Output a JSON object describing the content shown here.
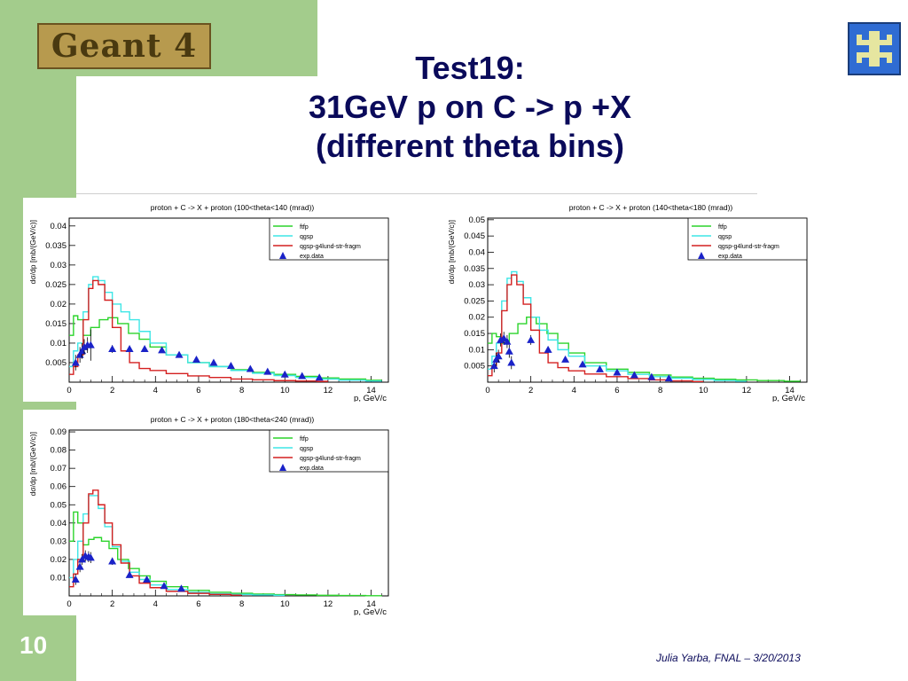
{
  "header": {
    "logo_text": "Geant 4",
    "title_lines": [
      "Test19:",
      "31GeV p on C -> p +X",
      "(different theta bins)"
    ],
    "fermilab_logo": "fermilab-logo-icon"
  },
  "footer": {
    "page_number": "10",
    "credit": "Julia Yarba, FNAL – 3/20/2013"
  },
  "colors": {
    "sidebar": "#a3cc8c",
    "title": "#0a0a5a",
    "ftfp": "#2bd42b",
    "qgsp": "#3ee6e6",
    "qgsp_lund": "#d42020",
    "exp": "#1a22c8"
  },
  "chart_data": [
    {
      "type": "line",
      "title": "proton + C -> X + proton  (100<theta<140 (mrad))",
      "xlabel": "p, GeV/c",
      "ylabel": "dσ/dp  [mb/(GeV/c)]",
      "xlim": [
        0,
        14.8
      ],
      "ylim": [
        0,
        0.042
      ],
      "xticks": [
        0,
        2,
        4,
        6,
        8,
        10,
        12,
        14
      ],
      "yticks": [
        0.005,
        0.01,
        0.015,
        0.02,
        0.025,
        0.03,
        0.035,
        0.04
      ],
      "ytick_labels": [
        "0.005",
        "0.01",
        "0.015",
        "0.02",
        "0.025",
        "0.03",
        "0.035",
        "0.04"
      ],
      "legend": [
        "ftfp",
        "qgsp",
        "qgsp-g4lund-str-fragm",
        "exp.data"
      ],
      "legend_position": "top-right",
      "series": [
        {
          "name": "ftfp",
          "x": [
            0.1,
            0.3,
            0.5,
            0.8,
            1.2,
            1.6,
            2.0,
            2.5,
            3.0,
            3.5,
            4.0,
            5.0,
            6.0,
            7.0,
            8.0,
            9.0,
            10.0,
            11.0,
            12.0,
            13.0,
            14.5
          ],
          "y": [
            0.012,
            0.017,
            0.016,
            0.012,
            0.014,
            0.016,
            0.0165,
            0.015,
            0.0125,
            0.011,
            0.009,
            0.007,
            0.005,
            0.004,
            0.0032,
            0.0025,
            0.002,
            0.0015,
            0.0011,
            0.0008,
            0.0005
          ]
        },
        {
          "name": "qgsp",
          "x": [
            0.1,
            0.3,
            0.5,
            0.8,
            1.0,
            1.2,
            1.5,
            1.8,
            2.2,
            2.6,
            3.0,
            3.5,
            4.0,
            5.0,
            6.0,
            7.0,
            8.0,
            9.0,
            10.0,
            11.0,
            12.0,
            13.0,
            14.5
          ],
          "y": [
            0.004,
            0.008,
            0.01,
            0.018,
            0.025,
            0.027,
            0.026,
            0.023,
            0.02,
            0.018,
            0.016,
            0.013,
            0.01,
            0.007,
            0.005,
            0.004,
            0.003,
            0.0023,
            0.0017,
            0.0012,
            0.0008,
            0.0005,
            0.0003
          ]
        },
        {
          "name": "qgsp-g4lund-str-fragm",
          "x": [
            0.1,
            0.3,
            0.5,
            0.8,
            1.0,
            1.2,
            1.5,
            1.8,
            2.2,
            2.6,
            3.0,
            3.5,
            4.0,
            5.0,
            6.0,
            7.0,
            8.0,
            9.0,
            10.0,
            11.0,
            12.0
          ],
          "y": [
            0.002,
            0.004,
            0.007,
            0.016,
            0.024,
            0.026,
            0.025,
            0.021,
            0.014,
            0.008,
            0.005,
            0.0035,
            0.003,
            0.0022,
            0.0016,
            0.0012,
            0.0008,
            0.0006,
            0.0004,
            0.0003,
            0.0002
          ]
        }
      ],
      "points": [
        {
          "x": 0.3,
          "y": 0.005,
          "err": 0.002
        },
        {
          "x": 0.5,
          "y": 0.007,
          "err": 0.002
        },
        {
          "x": 0.6,
          "y": 0.008,
          "err": 0.002
        },
        {
          "x": 0.7,
          "y": 0.009,
          "err": 0.002
        },
        {
          "x": 0.85,
          "y": 0.0095,
          "err": 0.002
        },
        {
          "x": 1.0,
          "y": 0.0095,
          "err": 0.004
        },
        {
          "x": 2.0,
          "y": 0.0085,
          "err": 0.001
        },
        {
          "x": 2.8,
          "y": 0.0085,
          "err": 0.0008
        },
        {
          "x": 3.5,
          "y": 0.0085,
          "err": 0.0007
        },
        {
          "x": 4.3,
          "y": 0.0082,
          "err": 0.0006
        },
        {
          "x": 5.1,
          "y": 0.007,
          "err": 0.0005
        },
        {
          "x": 5.9,
          "y": 0.0058,
          "err": 0.0004
        },
        {
          "x": 6.7,
          "y": 0.005,
          "err": 0.0004
        },
        {
          "x": 7.5,
          "y": 0.0042,
          "err": 0.0003
        },
        {
          "x": 8.4,
          "y": 0.0034,
          "err": 0.0003
        },
        {
          "x": 9.2,
          "y": 0.0027,
          "err": 0.0003
        },
        {
          "x": 10.0,
          "y": 0.002,
          "err": 0.0002
        },
        {
          "x": 10.8,
          "y": 0.0016,
          "err": 0.0002
        },
        {
          "x": 11.6,
          "y": 0.0012,
          "err": 0.0002
        }
      ]
    },
    {
      "type": "line",
      "title": "proton + C -> X + proton  (140<theta<180 (mrad))",
      "xlabel": "p, GeV/c",
      "ylabel": "dσ/dp  [mb/(GeV/c)]",
      "xlim": [
        0,
        14.8
      ],
      "ylim": [
        0,
        0.0505
      ],
      "xticks": [
        0,
        2,
        4,
        6,
        8,
        10,
        12,
        14
      ],
      "yticks": [
        0.005,
        0.01,
        0.015,
        0.02,
        0.025,
        0.03,
        0.035,
        0.04,
        0.045,
        0.05
      ],
      "ytick_labels": [
        "0.005",
        "0.01",
        "0.015",
        "0.02",
        "0.025",
        "0.03",
        "0.035",
        "0.04",
        "0.045",
        "0.05"
      ],
      "legend": [
        "ftfp",
        "qgsp",
        "qgsp-g4lund-str-fragm",
        "exp.data"
      ],
      "legend_position": "top-right",
      "series": [
        {
          "name": "ftfp",
          "x": [
            0.1,
            0.3,
            0.5,
            0.8,
            1.2,
            1.6,
            2.0,
            2.5,
            3.0,
            3.5,
            4.0,
            5.0,
            6.0,
            7.0,
            8.0,
            9.0,
            10.0,
            11.0,
            12.0,
            13.0,
            14.5
          ],
          "y": [
            0.012,
            0.015,
            0.014,
            0.012,
            0.015,
            0.018,
            0.02,
            0.018,
            0.015,
            0.012,
            0.009,
            0.006,
            0.004,
            0.003,
            0.0022,
            0.0016,
            0.0012,
            0.0009,
            0.0007,
            0.0005,
            0.0003
          ]
        },
        {
          "name": "qgsp",
          "x": [
            0.1,
            0.3,
            0.5,
            0.8,
            1.0,
            1.2,
            1.5,
            1.8,
            2.2,
            2.6,
            3.0,
            3.5,
            4.0,
            5.0,
            6.0,
            7.0,
            8.0,
            9.0,
            10.0,
            11.0,
            12.0
          ],
          "y": [
            0.004,
            0.008,
            0.012,
            0.025,
            0.032,
            0.034,
            0.031,
            0.026,
            0.02,
            0.016,
            0.013,
            0.01,
            0.008,
            0.005,
            0.0035,
            0.0024,
            0.0017,
            0.0012,
            0.0008,
            0.0005,
            0.0003
          ]
        },
        {
          "name": "qgsp-g4lund-str-fragm",
          "x": [
            0.1,
            0.3,
            0.5,
            0.8,
            1.0,
            1.2,
            1.5,
            1.8,
            2.2,
            2.6,
            3.0,
            3.5,
            4.0,
            5.0,
            6.0,
            7.0,
            8.0,
            9.0,
            10.0
          ],
          "y": [
            0.002,
            0.005,
            0.009,
            0.022,
            0.03,
            0.033,
            0.03,
            0.024,
            0.016,
            0.009,
            0.006,
            0.0045,
            0.0035,
            0.0025,
            0.0017,
            0.0011,
            0.0007,
            0.0004,
            0.0002
          ]
        }
      ],
      "points": [
        {
          "x": 0.3,
          "y": 0.005,
          "err": 0.002
        },
        {
          "x": 0.4,
          "y": 0.007,
          "err": 0.002
        },
        {
          "x": 0.5,
          "y": 0.008,
          "err": 0.002
        },
        {
          "x": 0.6,
          "y": 0.013,
          "err": 0.002
        },
        {
          "x": 0.75,
          "y": 0.0135,
          "err": 0.002
        },
        {
          "x": 0.9,
          "y": 0.0125,
          "err": 0.002
        },
        {
          "x": 1.0,
          "y": 0.0095,
          "err": 0.002
        },
        {
          "x": 1.1,
          "y": 0.006,
          "err": 0.002
        },
        {
          "x": 2.0,
          "y": 0.013,
          "err": 0.0015
        },
        {
          "x": 2.8,
          "y": 0.01,
          "err": 0.001
        },
        {
          "x": 3.6,
          "y": 0.007,
          "err": 0.0008
        },
        {
          "x": 4.4,
          "y": 0.0055,
          "err": 0.0006
        },
        {
          "x": 5.2,
          "y": 0.004,
          "err": 0.0005
        },
        {
          "x": 6.0,
          "y": 0.003,
          "err": 0.0004
        },
        {
          "x": 6.8,
          "y": 0.0022,
          "err": 0.0003
        },
        {
          "x": 7.6,
          "y": 0.0016,
          "err": 0.0003
        },
        {
          "x": 8.4,
          "y": 0.0012,
          "err": 0.0002
        }
      ]
    },
    {
      "type": "line",
      "title": "proton + C -> X + proton  (180<theta<240 (mrad))",
      "xlabel": "p, GeV/c",
      "ylabel": "dσ/dp  [mb/(GeV/c)]",
      "xlim": [
        0,
        14.8
      ],
      "ylim": [
        0,
        0.091
      ],
      "xticks": [
        0,
        2,
        4,
        6,
        8,
        10,
        12,
        14
      ],
      "yticks": [
        0.01,
        0.02,
        0.03,
        0.04,
        0.05,
        0.06,
        0.07,
        0.08,
        0.09
      ],
      "ytick_labels": [
        "0.01",
        "0.02",
        "0.03",
        "0.04",
        "0.05",
        "0.06",
        "0.07",
        "0.08",
        "0.09"
      ],
      "legend": [
        "ftfp",
        "qgsp",
        "qgsp-g4lund-str-fragm",
        "exp.data"
      ],
      "legend_position": "top-right",
      "series": [
        {
          "name": "ftfp",
          "x": [
            0.1,
            0.3,
            0.5,
            0.8,
            1.0,
            1.3,
            1.7,
            2.0,
            2.5,
            3.0,
            3.5,
            4.0,
            5.0,
            6.0,
            7.0,
            8.0,
            9.0,
            10.0,
            11.0,
            12.0,
            13.0,
            14.5
          ],
          "y": [
            0.03,
            0.046,
            0.04,
            0.028,
            0.031,
            0.032,
            0.03,
            0.026,
            0.02,
            0.015,
            0.011,
            0.008,
            0.005,
            0.003,
            0.002,
            0.0014,
            0.001,
            0.0007,
            0.0005,
            0.0003,
            0.0002,
            0.0001
          ]
        },
        {
          "name": "qgsp",
          "x": [
            0.1,
            0.3,
            0.5,
            0.8,
            1.0,
            1.2,
            1.5,
            1.8,
            2.2,
            2.6,
            3.0,
            3.5,
            4.0,
            5.0,
            6.0,
            7.0,
            8.0,
            9.0,
            10.0
          ],
          "y": [
            0.01,
            0.02,
            0.03,
            0.045,
            0.055,
            0.055,
            0.048,
            0.038,
            0.027,
            0.019,
            0.013,
            0.009,
            0.006,
            0.0035,
            0.002,
            0.0012,
            0.0008,
            0.0005,
            0.0003
          ]
        },
        {
          "name": "qgsp-g4lund-str-fragm",
          "x": [
            0.1,
            0.3,
            0.5,
            0.8,
            1.0,
            1.2,
            1.5,
            1.8,
            2.2,
            2.6,
            3.0,
            3.5,
            4.0,
            5.0,
            6.0,
            7.0,
            8.0
          ],
          "y": [
            0.005,
            0.012,
            0.02,
            0.04,
            0.056,
            0.058,
            0.05,
            0.04,
            0.028,
            0.018,
            0.011,
            0.007,
            0.0045,
            0.0025,
            0.0014,
            0.0008,
            0.0004
          ]
        }
      ],
      "points": [
        {
          "x": 0.3,
          "y": 0.009,
          "err": 0.003
        },
        {
          "x": 0.5,
          "y": 0.016,
          "err": 0.003
        },
        {
          "x": 0.6,
          "y": 0.02,
          "err": 0.003
        },
        {
          "x": 0.75,
          "y": 0.022,
          "err": 0.003
        },
        {
          "x": 0.9,
          "y": 0.0215,
          "err": 0.003
        },
        {
          "x": 1.0,
          "y": 0.021,
          "err": 0.003
        },
        {
          "x": 2.0,
          "y": 0.019,
          "err": 0.002
        },
        {
          "x": 2.8,
          "y": 0.0115,
          "err": 0.0015
        },
        {
          "x": 3.6,
          "y": 0.009,
          "err": 0.0012
        },
        {
          "x": 4.4,
          "y": 0.0055,
          "err": 0.001
        },
        {
          "x": 5.2,
          "y": 0.004,
          "err": 0.0008
        }
      ]
    }
  ]
}
